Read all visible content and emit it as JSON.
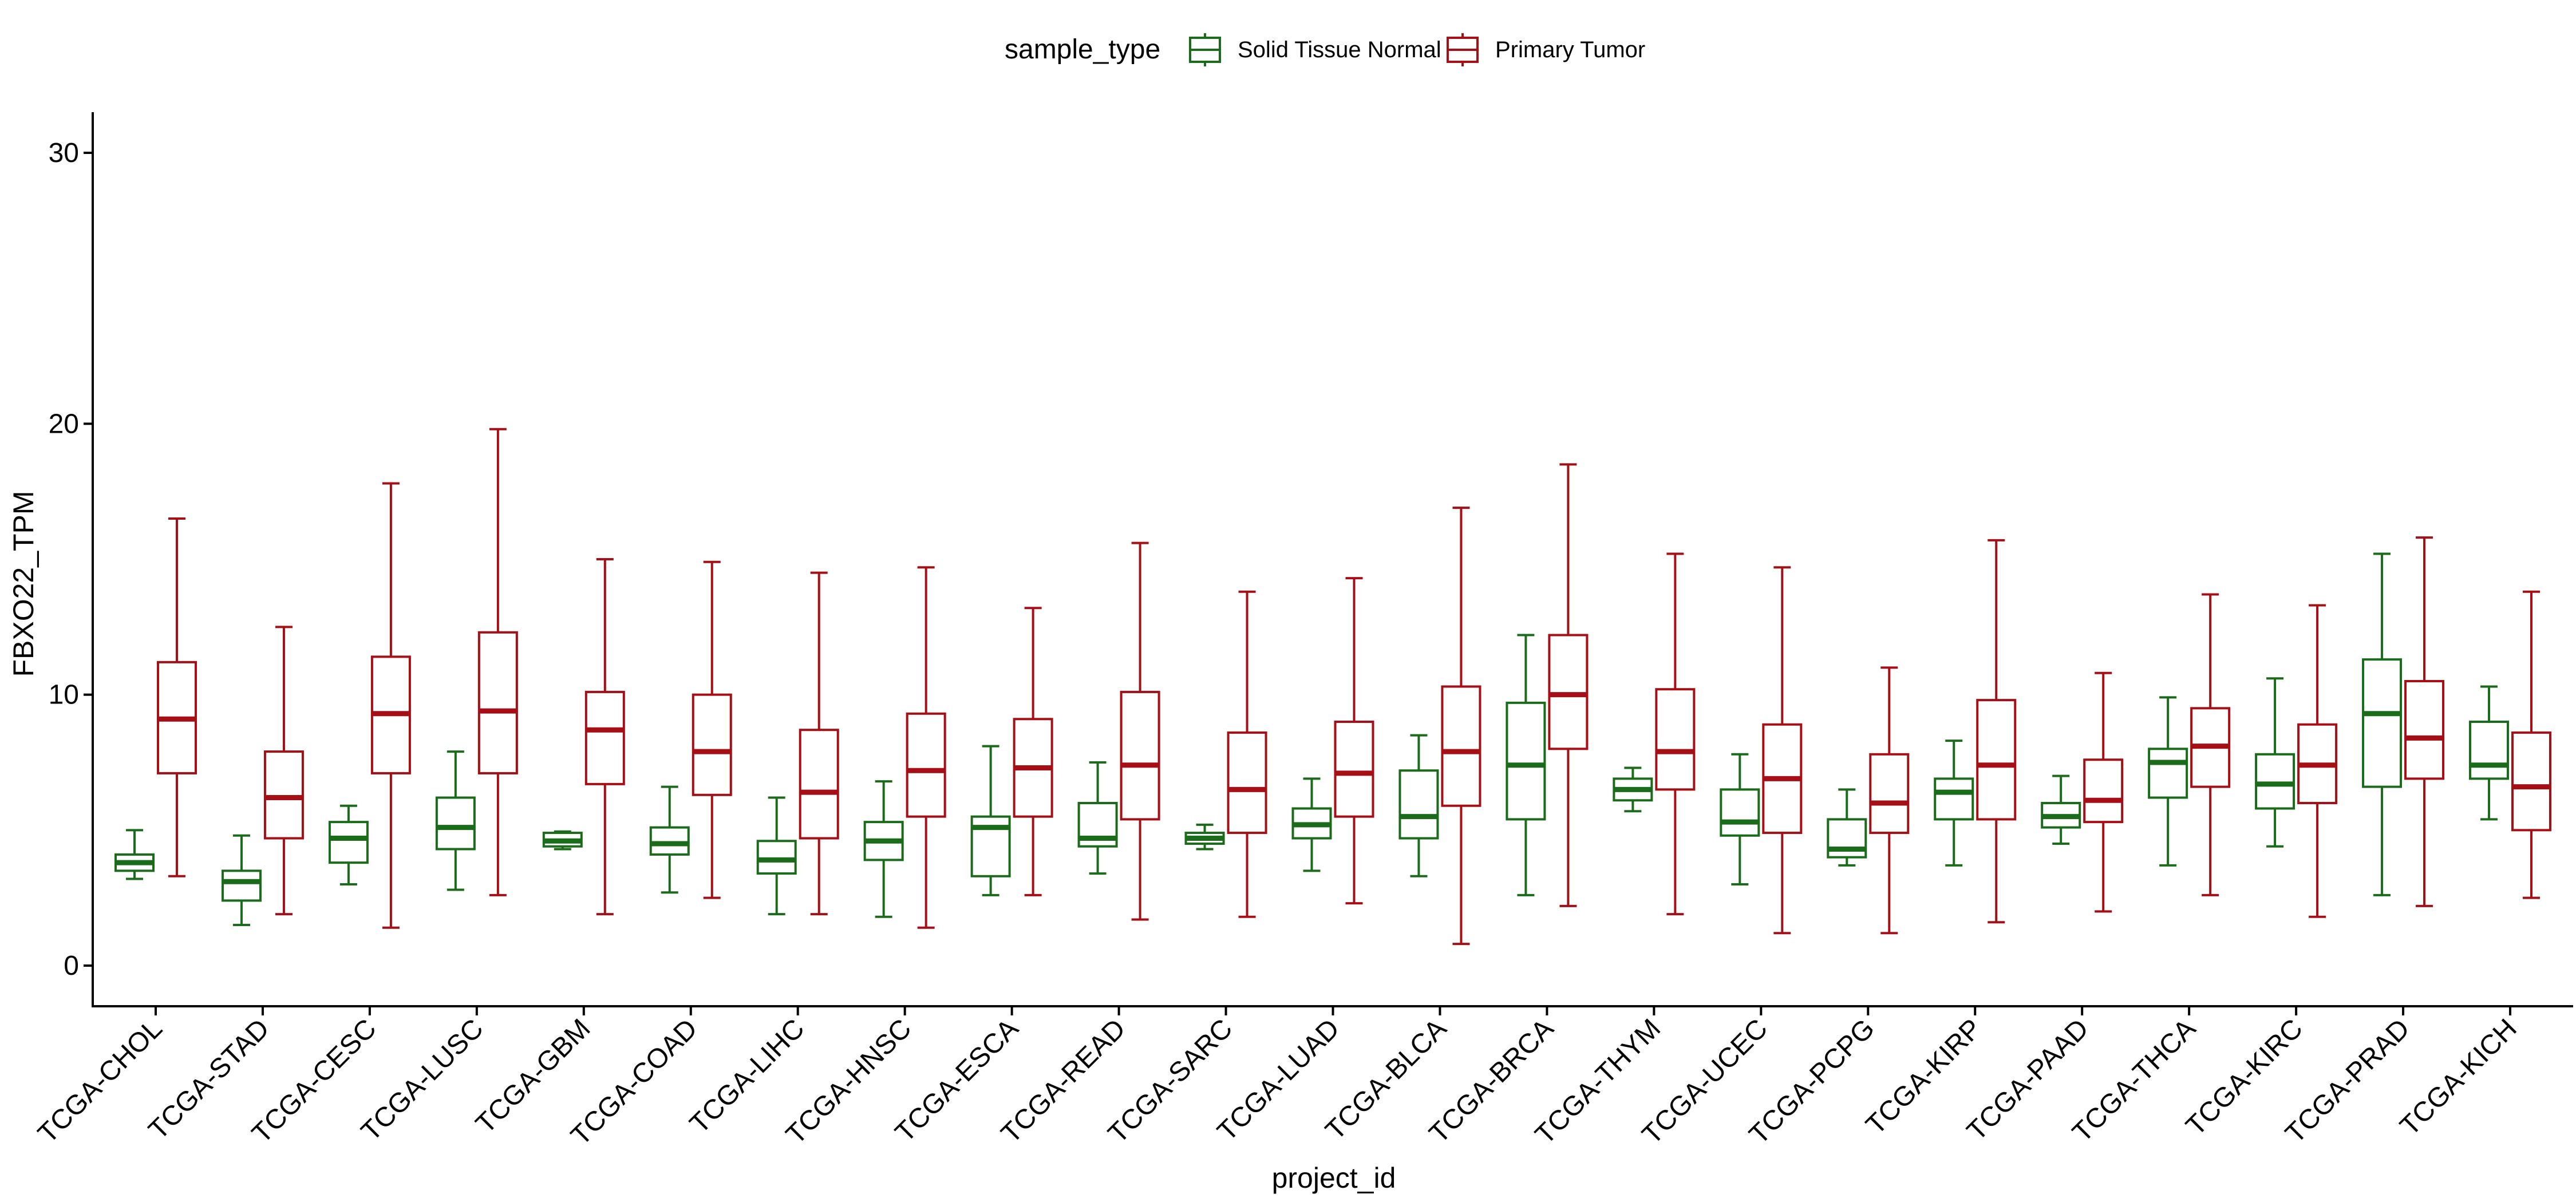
{
  "chart_data": {
    "type": "boxplot",
    "xlabel": "project_id",
    "ylabel": "FBXO22_TPM",
    "ylim": [
      -1.5,
      31.5
    ],
    "yticks": [
      "0",
      "10",
      "20",
      "30"
    ],
    "grid": false,
    "legend": {
      "title": "sample_type",
      "position": "top",
      "items": [
        "Solid Tissue Normal",
        "Primary Tumor"
      ]
    },
    "colors": {
      "Solid Tissue Normal": "#1a6b1a",
      "Primary Tumor": "#a50f15"
    },
    "categories": [
      "TCGA-CHOL",
      "TCGA-STAD",
      "TCGA-CESC",
      "TCGA-LUSC",
      "TCGA-GBM",
      "TCGA-COAD",
      "TCGA-LIHC",
      "TCGA-HNSC",
      "TCGA-ESCA",
      "TCGA-READ",
      "TCGA-SARC",
      "TCGA-LUAD",
      "TCGA-BLCA",
      "TCGA-BRCA",
      "TCGA-THYM",
      "TCGA-UCEC",
      "TCGA-PCPG",
      "TCGA-KIRP",
      "TCGA-PAAD",
      "TCGA-THCA",
      "TCGA-KIRC",
      "TCGA-PRAD",
      "TCGA-KICH"
    ],
    "series": [
      {
        "name": "Solid Tissue Normal",
        "boxes": [
          {
            "min": 3.2,
            "q1": 3.5,
            "median": 3.8,
            "q3": 4.1,
            "max": 5.0
          },
          {
            "min": 1.5,
            "q1": 2.4,
            "median": 3.1,
            "q3": 3.5,
            "max": 4.8
          },
          {
            "min": 3.0,
            "q1": 3.8,
            "median": 4.7,
            "q3": 5.3,
            "max": 5.9
          },
          {
            "min": 2.8,
            "q1": 4.3,
            "median": 5.1,
            "q3": 6.2,
            "max": 7.9
          },
          {
            "min": 4.3,
            "q1": 4.4,
            "median": 4.6,
            "q3": 4.9,
            "max": 4.95
          },
          {
            "min": 2.7,
            "q1": 4.1,
            "median": 4.5,
            "q3": 5.1,
            "max": 6.6
          },
          {
            "min": 1.9,
            "q1": 3.4,
            "median": 3.9,
            "q3": 4.6,
            "max": 6.2
          },
          {
            "min": 1.8,
            "q1": 3.9,
            "median": 4.6,
            "q3": 5.3,
            "max": 6.8
          },
          {
            "min": 2.6,
            "q1": 3.3,
            "median": 5.1,
            "q3": 5.5,
            "max": 8.1
          },
          {
            "min": 3.4,
            "q1": 4.4,
            "median": 4.7,
            "q3": 6.0,
            "max": 7.5
          },
          {
            "min": 4.3,
            "q1": 4.5,
            "median": 4.7,
            "q3": 4.9,
            "max": 5.2
          },
          {
            "min": 3.5,
            "q1": 4.7,
            "median": 5.2,
            "q3": 5.8,
            "max": 6.9
          },
          {
            "min": 3.3,
            "q1": 4.7,
            "median": 5.5,
            "q3": 7.2,
            "max": 8.5
          },
          {
            "min": 2.6,
            "q1": 5.4,
            "median": 7.4,
            "q3": 9.7,
            "max": 12.2
          },
          {
            "min": 5.7,
            "q1": 6.1,
            "median": 6.5,
            "q3": 6.9,
            "max": 7.3
          },
          {
            "min": 3.0,
            "q1": 4.8,
            "median": 5.3,
            "q3": 6.5,
            "max": 7.8
          },
          {
            "min": 3.7,
            "q1": 4.0,
            "median": 4.3,
            "q3": 5.4,
            "max": 6.5
          },
          {
            "min": 3.7,
            "q1": 5.4,
            "median": 6.4,
            "q3": 6.9,
            "max": 8.3
          },
          {
            "min": 4.5,
            "q1": 5.1,
            "median": 5.5,
            "q3": 6.0,
            "max": 7.0
          },
          {
            "min": 3.7,
            "q1": 6.2,
            "median": 7.5,
            "q3": 8.0,
            "max": 9.9
          },
          {
            "min": 4.4,
            "q1": 5.8,
            "median": 6.7,
            "q3": 7.8,
            "max": 10.6
          },
          {
            "min": 2.6,
            "q1": 6.6,
            "median": 9.3,
            "q3": 11.3,
            "max": 15.2
          },
          {
            "min": 5.4,
            "q1": 6.9,
            "median": 7.4,
            "q3": 9.0,
            "max": 10.3
          }
        ]
      },
      {
        "name": "Primary Tumor",
        "boxes": [
          {
            "min": 3.3,
            "q1": 7.1,
            "median": 9.1,
            "q3": 11.2,
            "max": 16.5
          },
          {
            "min": 1.9,
            "q1": 4.7,
            "median": 6.2,
            "q3": 7.9,
            "max": 12.5
          },
          {
            "min": 1.4,
            "q1": 7.1,
            "median": 9.3,
            "q3": 11.4,
            "max": 17.8
          },
          {
            "min": 2.6,
            "q1": 7.1,
            "median": 9.4,
            "q3": 12.3,
            "max": 19.8
          },
          {
            "min": 1.9,
            "q1": 6.7,
            "median": 8.7,
            "q3": 10.1,
            "max": 15.0
          },
          {
            "min": 2.5,
            "q1": 6.3,
            "median": 7.9,
            "q3": 10.0,
            "max": 14.9
          },
          {
            "min": 1.9,
            "q1": 4.7,
            "median": 6.4,
            "q3": 8.7,
            "max": 14.5
          },
          {
            "min": 1.4,
            "q1": 5.5,
            "median": 7.2,
            "q3": 9.3,
            "max": 14.7
          },
          {
            "min": 2.6,
            "q1": 5.5,
            "median": 7.3,
            "q3": 9.1,
            "max": 13.2
          },
          {
            "min": 1.7,
            "q1": 5.4,
            "median": 7.4,
            "q3": 10.1,
            "max": 15.6
          },
          {
            "min": 1.8,
            "q1": 4.9,
            "median": 6.5,
            "q3": 8.6,
            "max": 13.8
          },
          {
            "min": 2.3,
            "q1": 5.5,
            "median": 7.1,
            "q3": 9.0,
            "max": 14.3
          },
          {
            "min": 0.8,
            "q1": 5.9,
            "median": 7.9,
            "q3": 10.3,
            "max": 16.9
          },
          {
            "min": 2.2,
            "q1": 8.0,
            "median": 10.0,
            "q3": 12.2,
            "max": 18.5
          },
          {
            "min": 1.9,
            "q1": 6.5,
            "median": 7.9,
            "q3": 10.2,
            "max": 15.2
          },
          {
            "min": 1.2,
            "q1": 4.9,
            "median": 6.9,
            "q3": 8.9,
            "max": 14.7
          },
          {
            "min": 1.2,
            "q1": 4.9,
            "median": 6.0,
            "q3": 7.8,
            "max": 11.0
          },
          {
            "min": 1.6,
            "q1": 5.4,
            "median": 7.4,
            "q3": 9.8,
            "max": 15.7
          },
          {
            "min": 2.0,
            "q1": 5.3,
            "median": 6.1,
            "q3": 7.6,
            "max": 10.8
          },
          {
            "min": 2.6,
            "q1": 6.6,
            "median": 8.1,
            "q3": 9.5,
            "max": 13.7
          },
          {
            "min": 1.8,
            "q1": 6.0,
            "median": 7.4,
            "q3": 8.9,
            "max": 13.3
          },
          {
            "min": 2.2,
            "q1": 6.9,
            "median": 8.4,
            "q3": 10.5,
            "max": 15.8
          },
          {
            "min": 2.5,
            "q1": 5.0,
            "median": 6.6,
            "q3": 8.6,
            "max": 13.8
          }
        ]
      }
    ]
  }
}
